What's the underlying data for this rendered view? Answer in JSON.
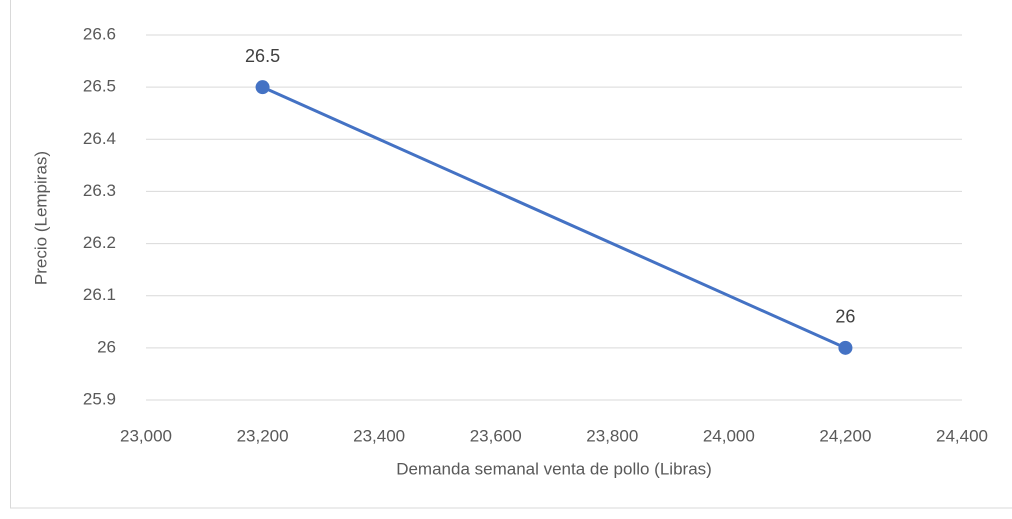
{
  "chart_data": {
    "type": "line",
    "xlabel": "Demanda semanal venta de pollo (Libras)",
    "ylabel": "Precio (Lempiras)",
    "x": [
      23200,
      24200
    ],
    "values": [
      26.5,
      26
    ],
    "color": "#4472c4",
    "xlim": [
      23000,
      24400
    ],
    "xticks": [
      {
        "value": 23000,
        "label": "23,000"
      },
      {
        "value": 23200,
        "label": "23,200"
      },
      {
        "value": 23400,
        "label": "23,400"
      },
      {
        "value": 23600,
        "label": "23,600"
      },
      {
        "value": 23800,
        "label": "23,800"
      },
      {
        "value": 24000,
        "label": "24,000"
      },
      {
        "value": 24200,
        "label": "24,200"
      },
      {
        "value": 24400,
        "label": "24,400"
      }
    ],
    "ylim": [
      25.9,
      26.6
    ],
    "yticks": [
      25.9,
      26,
      26.1,
      26.2,
      26.3,
      26.4,
      26.5,
      26.6
    ],
    "grid": true
  }
}
